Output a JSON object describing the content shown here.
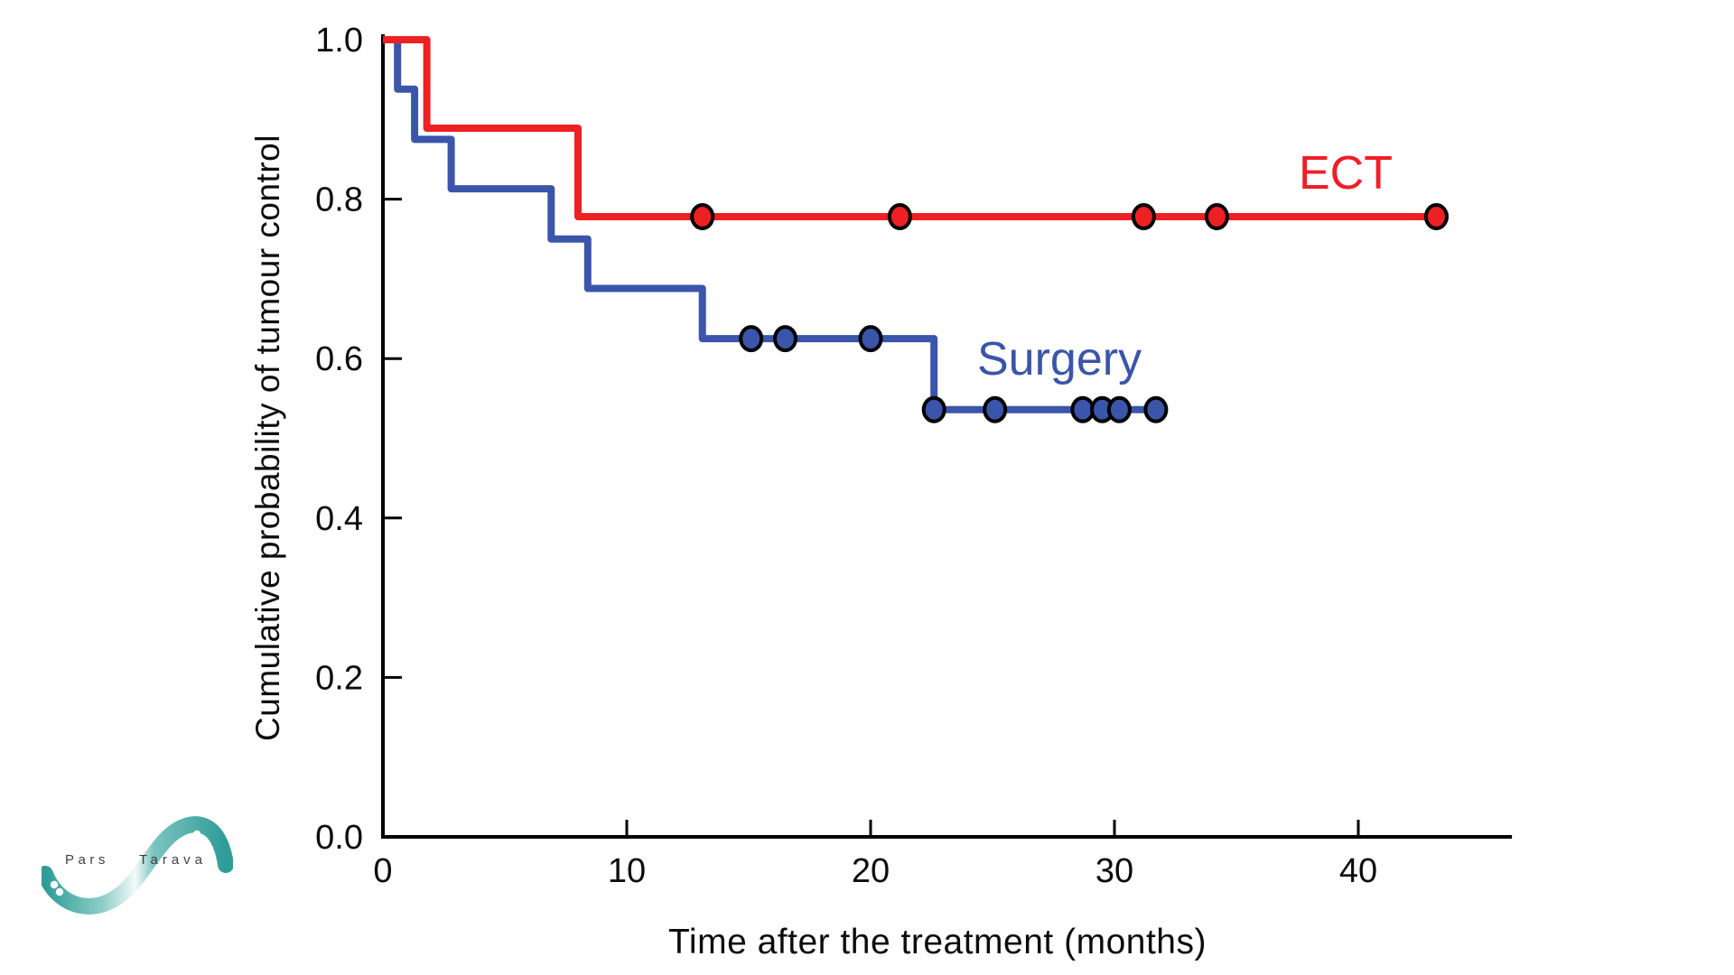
{
  "figure": {
    "background": "#ffffff",
    "axis_color": "#000000",
    "text_color": "#0c0c0c"
  },
  "labels": {
    "ect": "ECT",
    "surgery": "Surgery",
    "x_axis_title": "Time after the treatment (months)",
    "y_axis_title": "Cumulative probability of tumour control"
  },
  "chart_data": {
    "type": "line",
    "subtype": "kaplan-meier-step",
    "title": "",
    "xlabel": "Time after the treatment (months)",
    "ylabel": "Cumulative probability of tumour control",
    "xlim": [
      0,
      46.3
    ],
    "ylim": [
      0,
      1.0
    ],
    "grid": false,
    "legend_position": "inline-labels-on-plot",
    "x_ticks": [
      0,
      10,
      20,
      30,
      40
    ],
    "y_ticks": [
      "0.0",
      "0.2",
      "0.4",
      "0.6",
      "0.8",
      "1.0"
    ],
    "series": [
      {
        "name": "Surgery",
        "color": "#3A55A9",
        "steps": [
          [
            0,
            1.0
          ],
          [
            0.6,
            0.938
          ],
          [
            1.3,
            0.875
          ],
          [
            2.8,
            0.813
          ],
          [
            6.9,
            0.75
          ],
          [
            8.4,
            0.688
          ],
          [
            13.1,
            0.625
          ],
          [
            22.6,
            0.536
          ]
        ],
        "end_month": 32.0,
        "censor_marks": [
          [
            15.1,
            0.625
          ],
          [
            16.5,
            0.625
          ],
          [
            20.0,
            0.625
          ],
          [
            22.6,
            0.536
          ],
          [
            25.1,
            0.536
          ],
          [
            28.7,
            0.536
          ],
          [
            29.5,
            0.536
          ],
          [
            30.2,
            0.536
          ],
          [
            31.7,
            0.536
          ]
        ]
      },
      {
        "name": "ECT",
        "color": "#ED2024",
        "steps": [
          [
            0,
            1.0
          ],
          [
            1.8,
            0.889
          ],
          [
            8.0,
            0.778
          ]
        ],
        "end_month": 43.7,
        "censor_marks": [
          [
            13.1,
            0.778
          ],
          [
            21.2,
            0.778
          ],
          [
            31.2,
            0.778
          ],
          [
            34.2,
            0.778
          ],
          [
            43.2,
            0.778
          ]
        ]
      }
    ]
  },
  "logo": {
    "text_left": "Pars",
    "text_right": "Tarava",
    "teal": "#2E9C97",
    "teal_light": "#EAF6F5",
    "text_color": "#3f3f3f"
  }
}
